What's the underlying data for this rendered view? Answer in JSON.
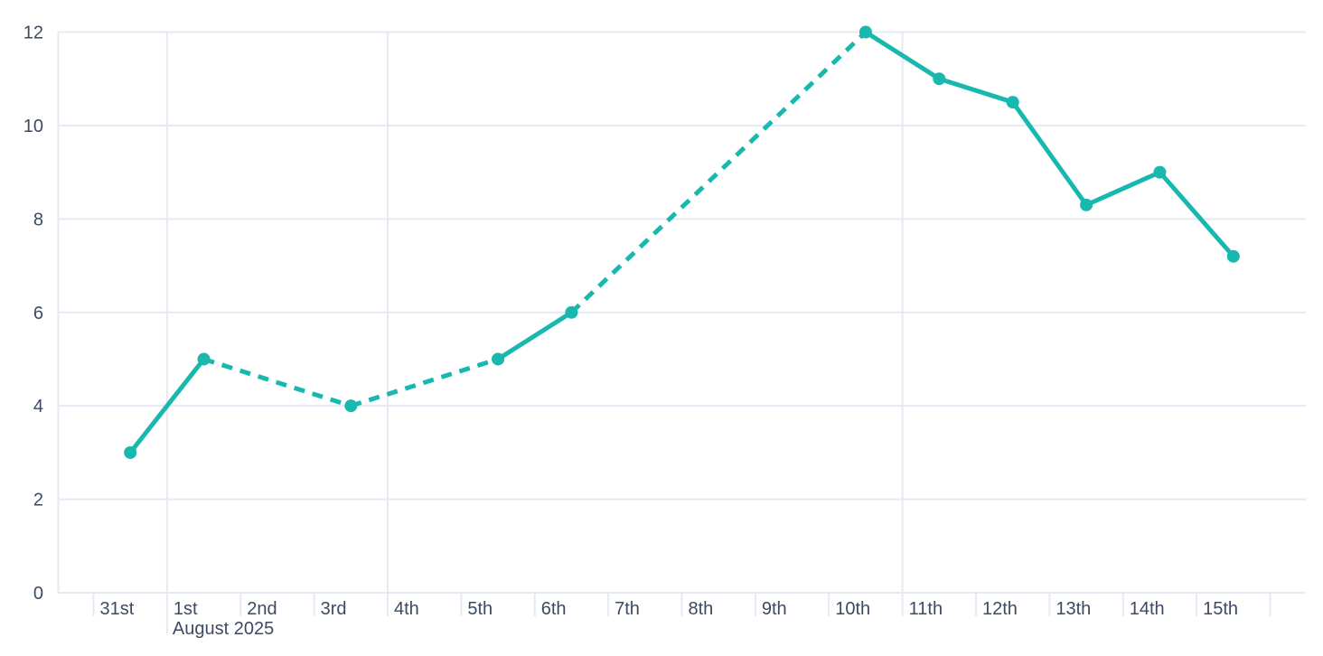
{
  "page": {
    "background": "#ffffff"
  },
  "style": {
    "series_color": "#19b8ae",
    "grid_color": "#e6e9f2",
    "tick_color": "#e6e9f2",
    "text_color": "#3c4a64"
  },
  "chart_data": {
    "type": "line",
    "title": "",
    "xlabel": "",
    "ylabel": "",
    "x_categories": [
      "31st",
      "1st",
      "2nd",
      "3rd",
      "4th",
      "5th",
      "6th",
      "7th",
      "8th",
      "9th",
      "10th",
      "11th",
      "12th",
      "13th",
      "14th",
      "15th"
    ],
    "x_axis_month_label": "August 2025",
    "x_axis_month_label_category": "1st",
    "y_ticks": [
      0,
      2,
      4,
      6,
      8,
      10,
      12
    ],
    "ylim": [
      0,
      12
    ],
    "grid": true,
    "legend": false,
    "major_vertical_gridlines_at": [
      "1st",
      "4th",
      "11th"
    ],
    "series": [
      {
        "name": "daily-values",
        "points": [
          {
            "x": "31st",
            "y": 3
          },
          {
            "x": "1st",
            "y": 5
          },
          {
            "x": "3rd",
            "y": 4
          },
          {
            "x": "5th",
            "y": 5
          },
          {
            "x": "6th",
            "y": 6
          },
          {
            "x": "10th",
            "y": 12
          },
          {
            "x": "11th",
            "y": 11
          },
          {
            "x": "12th",
            "y": 10.5
          },
          {
            "x": "13th",
            "y": 8.3
          },
          {
            "x": "14th",
            "y": 9
          },
          {
            "x": "15th",
            "y": 7.2
          }
        ],
        "dashed_segments": [
          [
            "1st",
            "3rd"
          ],
          [
            "3rd",
            "5th"
          ],
          [
            "6th",
            "10th"
          ]
        ]
      }
    ]
  }
}
